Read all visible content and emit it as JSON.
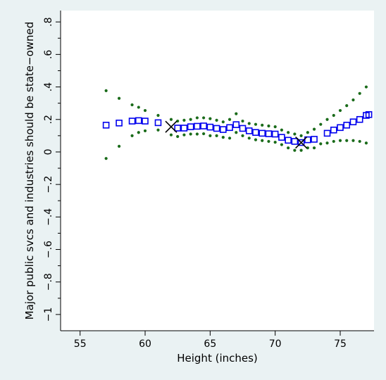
{
  "chart_data": {
    "type": "scatter",
    "title": "",
    "xlabel": "Height (inches)",
    "ylabel": "Major public svcs and industries should be state−owned",
    "xlim": [
      53.5,
      77.6
    ],
    "ylim": [
      -1.1,
      0.87
    ],
    "xticks": [
      55,
      60,
      65,
      70,
      75
    ],
    "xtick_labels": [
      "55",
      "60",
      "65",
      "70",
      "75"
    ],
    "yticks": [
      0.8,
      0.6,
      0.4,
      0.2,
      0,
      -0.2,
      -0.4,
      -0.6,
      -0.8,
      -1
    ],
    "ytick_labels": [
      ".8",
      ".6",
      ".4",
      ".2",
      "0",
      "−.2",
      "−.4",
      "−.6",
      "−.8",
      "−1"
    ],
    "ytick_minor": [
      0.7,
      0.5,
      0.3,
      0.1,
      -0.1,
      -0.3,
      -0.5,
      -0.7,
      -0.9
    ],
    "grid": false,
    "legend": "none",
    "colors": {
      "background": "#eaf2f3",
      "plot_background": "#ffffff",
      "estimate": "#0000ee",
      "bounds": "#1a6b1a",
      "marker_x": "#000000"
    },
    "series": [
      {
        "marker": "hollow-square",
        "x": [
          57,
          58,
          59,
          59.5,
          60,
          61,
          62.5,
          63,
          63.5,
          64,
          64.5,
          65,
          65.5,
          66,
          66.5,
          67,
          67.5,
          68,
          68.5,
          69,
          69.5,
          70,
          70.5,
          71,
          71.5,
          72,
          72.5,
          73,
          74,
          74.5,
          75,
          75.5,
          76,
          76.5,
          77
        ],
        "y": [
          0.165,
          0.178,
          0.19,
          0.193,
          0.19,
          0.18,
          0.147,
          0.147,
          0.155,
          0.158,
          0.16,
          0.153,
          0.145,
          0.138,
          0.15,
          0.168,
          0.145,
          0.13,
          0.12,
          0.115,
          0.112,
          0.11,
          0.09,
          0.072,
          0.065,
          0.058,
          0.075,
          0.078,
          0.115,
          0.135,
          0.15,
          0.165,
          0.185,
          0.2,
          0.225
        ],
        "extra_points": [
          {
            "x": 77.2,
            "y": 0.23
          }
        ]
      },
      {
        "marker": "dot",
        "x": [
          57,
          58,
          59,
          59.5,
          60,
          61,
          62,
          62.5,
          63,
          63.5,
          64,
          64.5,
          65,
          65.5,
          66,
          66.5,
          67,
          67.5,
          68,
          68.5,
          69,
          69.5,
          70,
          70.5,
          71,
          71.5,
          72,
          72.5,
          73,
          73.5,
          74,
          74.5,
          75,
          75.5,
          76,
          76.5,
          77
        ],
        "y": [
          0.377,
          0.33,
          0.29,
          0.275,
          0.255,
          0.225,
          0.2,
          0.19,
          0.195,
          0.2,
          0.21,
          0.21,
          0.205,
          0.195,
          0.185,
          0.2,
          0.235,
          0.19,
          0.175,
          0.17,
          0.165,
          0.16,
          0.155,
          0.135,
          0.12,
          0.11,
          0.1,
          0.12,
          0.14,
          0.17,
          0.2,
          0.225,
          0.255,
          0.285,
          0.32,
          0.36,
          0.4
        ]
      },
      {
        "marker": "dot",
        "x": [
          57,
          58,
          59,
          59.5,
          60,
          61,
          62,
          62.5,
          63,
          63.5,
          64,
          64.5,
          65,
          65.5,
          66,
          66.5,
          67,
          67.5,
          68,
          68.5,
          69,
          69.5,
          70,
          70.5,
          71,
          71.5,
          72,
          72.5,
          73,
          73.5,
          74,
          74.5,
          75,
          75.5,
          76,
          76.5,
          77
        ],
        "y": [
          -0.04,
          0.035,
          0.1,
          0.12,
          0.13,
          0.135,
          0.105,
          0.095,
          0.105,
          0.11,
          0.11,
          0.112,
          0.1,
          0.1,
          0.09,
          0.085,
          0.12,
          0.1,
          0.085,
          0.075,
          0.07,
          0.065,
          0.06,
          0.045,
          0.025,
          0.01,
          0.01,
          0.025,
          0.025,
          0.05,
          0.055,
          0.065,
          0.07,
          0.07,
          0.07,
          0.065,
          0.055
        ]
      },
      {
        "marker": "x",
        "x": [
          62,
          72
        ],
        "y": [
          0.155,
          0.058
        ]
      }
    ]
  }
}
